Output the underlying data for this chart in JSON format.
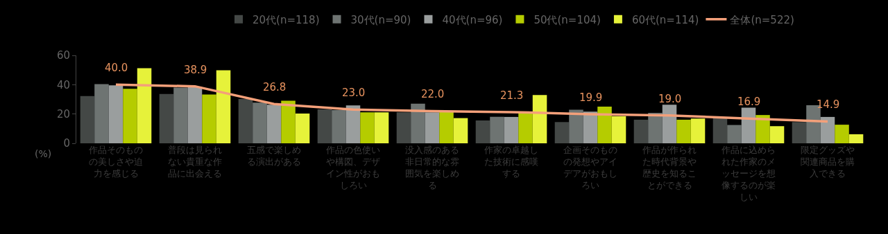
{
  "chart_data": {
    "type": "bar",
    "categories": [
      "作品そのものの美しさや迫力を感じる",
      "普段は見られない貴重な作品に出会える",
      "五感で楽しめる演出がある",
      "作品の色使いや構図、デザイン性がおもしろい",
      "没入感のある非日常的な雰囲気を楽しめる",
      "作家の卓越した技術に感嘆する",
      "企画そのものの発想やアイデアがおもしろい",
      "作品が作られた時代背景や歴史を知ることができる",
      "作品に込められた作家のメッセージを想像するのが楽しい",
      "限定グッズや関連商品を購入できる"
    ],
    "series": [
      {
        "name": "20代(n=118)",
        "color": "#444846",
        "values": [
          32.3,
          33.7,
          30.2,
          23.2,
          21.1,
          15.6,
          14.5,
          16.1,
          17.0,
          14.5
        ]
      },
      {
        "name": "30代(n=90)",
        "color": "#6e7472",
        "values": [
          40.4,
          38.0,
          27.8,
          22.7,
          27.1,
          18.1,
          22.9,
          20.8,
          12.5,
          26.0
        ]
      },
      {
        "name": "40代(n=96)",
        "color": "#9a9e9e",
        "values": [
          39.6,
          38.5,
          26.3,
          25.9,
          21.1,
          18.0,
          21.6,
          26.3,
          24.3,
          18.0
        ]
      },
      {
        "name": "50代(n=104)",
        "color": "#b5cc00",
        "values": [
          37.2,
          33.3,
          29.1,
          21.1,
          21.5,
          21.0,
          25.0,
          16.1,
          19.3,
          12.7
        ]
      },
      {
        "name": "60代(n=114)",
        "color": "#e6f23a",
        "values": [
          51.3,
          49.8,
          20.3,
          21.1,
          17.2,
          32.9,
          18.5,
          16.9,
          11.7,
          6.2
        ]
      },
      {
        "name": "全体(n=522)",
        "type": "line",
        "color": "#f4a07a",
        "values": [
          40.0,
          38.9,
          26.8,
          23.0,
          22.0,
          21.3,
          19.9,
          19.0,
          16.9,
          14.9
        ],
        "value_labels": [
          "40.0",
          "38.9",
          "26.8",
          "23.0",
          "22.0",
          "21.3",
          "19.9",
          "19.0",
          "16.9",
          "14.9"
        ]
      }
    ],
    "ylabel": "(%)",
    "ylim": [
      0,
      60
    ],
    "yticks": [
      0,
      20,
      40,
      60
    ],
    "grid": false,
    "legend": "top",
    "marker": "none",
    "line_style": "solid"
  }
}
